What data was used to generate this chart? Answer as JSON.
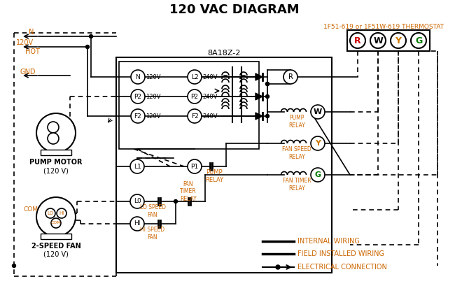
{
  "title": "120 VAC DIAGRAM",
  "title_color": "#000000",
  "title_fontsize": 13,
  "background_color": "#ffffff",
  "thermostat_label": "1F51-619 or 1F51W-619 THERMOSTAT",
  "thermostat_terminals": [
    "R",
    "W",
    "Y",
    "G"
  ],
  "control_box_label": "8A18Z-2",
  "left_term_labels": [
    "N",
    "P2",
    "F2"
  ],
  "right_term_labels": [
    "L2",
    "P2",
    "F2"
  ],
  "coil_names": [
    "PUMP\nRELAY",
    "FAN SPEED\nRELAY",
    "FAN TIMER\nRELAY"
  ],
  "coil_term_labels": [
    "W",
    "Y",
    "G"
  ],
  "legend_items": [
    "INTERNAL WIRING",
    "FIELD INSTALLED WIRING",
    "ELECTRICAL CONNECTION"
  ],
  "orange_color": "#cc6600"
}
